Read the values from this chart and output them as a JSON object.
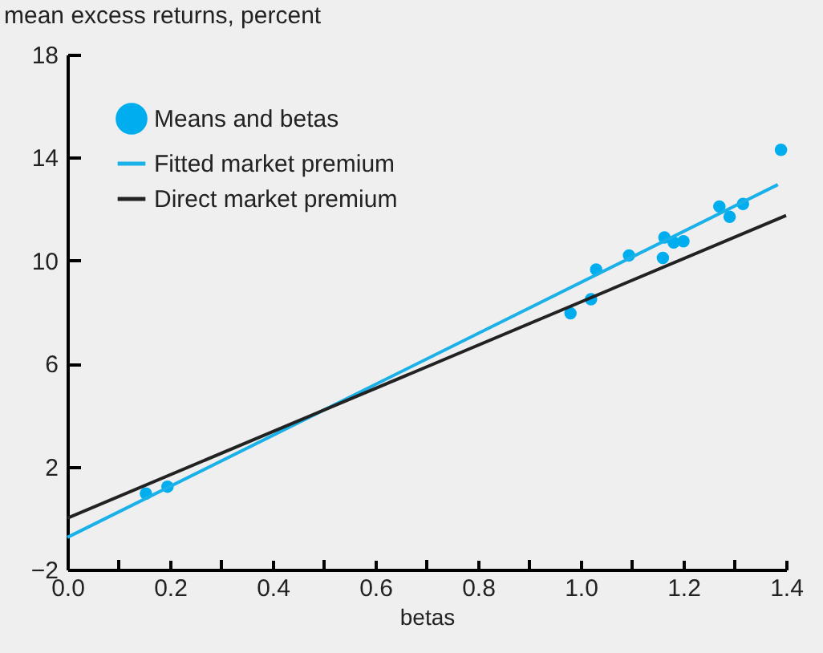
{
  "chart_data": {
    "type": "scatter",
    "xlabel": "betas",
    "ylabel": "mean excess returns, percent",
    "xlim": [
      0,
      1.4
    ],
    "ylim": [
      -2,
      18
    ],
    "xticks": [
      {
        "value": 0,
        "label": "0.0"
      },
      {
        "value": 0.1,
        "label": null
      },
      {
        "value": 0.2,
        "label": "0.2"
      },
      {
        "value": 0.3,
        "label": null
      },
      {
        "value": 0.4,
        "label": "0.4"
      },
      {
        "value": 0.5,
        "label": null
      },
      {
        "value": 0.6,
        "label": "0.6"
      },
      {
        "value": 0.7,
        "label": null
      },
      {
        "value": 0.8,
        "label": "0.8"
      },
      {
        "value": 0.9,
        "label": null
      },
      {
        "value": 1.0,
        "label": "1.0"
      },
      {
        "value": 1.1,
        "label": null
      },
      {
        "value": 1.2,
        "label": "1.2"
      },
      {
        "value": 1.3,
        "label": null
      },
      {
        "value": 1.4,
        "label": "1.4"
      }
    ],
    "yticks": [
      {
        "value": -2,
        "label": "−2"
      },
      2,
      6,
      10,
      14,
      18
    ],
    "grid": false,
    "legend": "top left",
    "series": [
      {
        "name": "Means and betas",
        "type": "scatter",
        "color": "#00aeef",
        "marker": "circle",
        "x": [
          0.153,
          0.195,
          0.98,
          1.02,
          1.03,
          1.094,
          1.16,
          1.163,
          1.181,
          1.2,
          1.27,
          1.29,
          1.316,
          1.39
        ],
        "values": [
          0.95,
          1.22,
          7.95,
          8.5,
          9.65,
          10.2,
          10.1,
          10.9,
          10.7,
          10.75,
          12.1,
          11.7,
          12.2,
          14.3
        ]
      },
      {
        "name": "Fitted market premium",
        "type": "line",
        "color": "#1ab0e8",
        "x": [
          0,
          1.384
        ],
        "values": [
          -0.75,
          12.95
        ]
      },
      {
        "name": "Direct market premium",
        "type": "line",
        "color": "#222222",
        "x": [
          0,
          1.4
        ],
        "values": [
          0,
          11.75
        ]
      }
    ]
  }
}
